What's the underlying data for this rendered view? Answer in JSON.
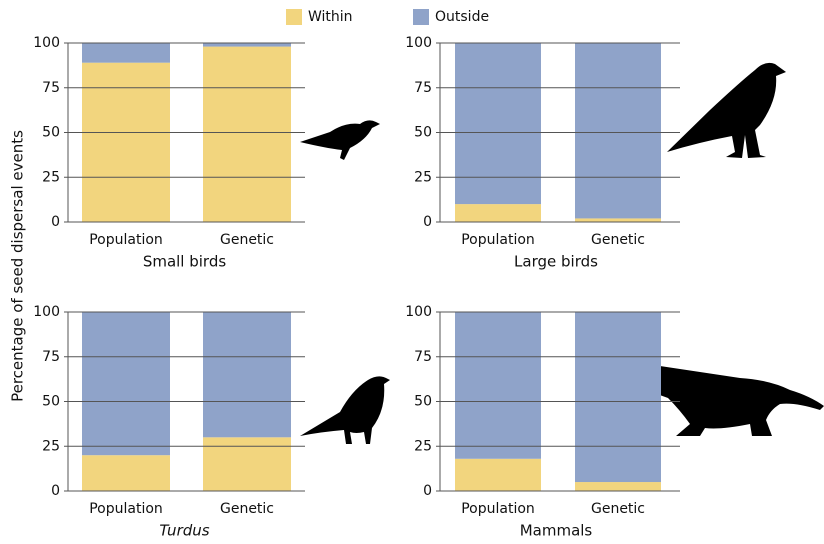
{
  "ylabel": "Percentage of seed dispersal events",
  "chart_data": [
    {
      "type": "bar",
      "stacked": true,
      "title": "Small birds",
      "italic": false,
      "categories": [
        "Population",
        "Genetic"
      ],
      "series": [
        {
          "name": "Within",
          "color": "#f2d57e",
          "values": [
            89,
            98
          ]
        },
        {
          "name": "Outside",
          "color": "#8fa3c9",
          "values": [
            11,
            2
          ]
        }
      ],
      "ylim": [
        0,
        100
      ],
      "yticks": [
        0,
        25,
        50,
        75,
        100
      ],
      "grid": true
    },
    {
      "type": "bar",
      "stacked": true,
      "title": "Large birds",
      "italic": false,
      "categories": [
        "Population",
        "Genetic"
      ],
      "series": [
        {
          "name": "Within",
          "color": "#f2d57e",
          "values": [
            10,
            2
          ]
        },
        {
          "name": "Outside",
          "color": "#8fa3c9",
          "values": [
            90,
            98
          ]
        }
      ],
      "ylim": [
        0,
        100
      ],
      "yticks": [
        0,
        25,
        50,
        75,
        100
      ],
      "grid": true
    },
    {
      "type": "bar",
      "stacked": true,
      "title": "Turdus",
      "italic": true,
      "categories": [
        "Population",
        "Genetic"
      ],
      "series": [
        {
          "name": "Within",
          "color": "#f2d57e",
          "values": [
            20,
            30
          ]
        },
        {
          "name": "Outside",
          "color": "#8fa3c9",
          "values": [
            80,
            70
          ]
        }
      ],
      "ylim": [
        0,
        100
      ],
      "yticks": [
        0,
        25,
        50,
        75,
        100
      ],
      "grid": true
    },
    {
      "type": "bar",
      "stacked": true,
      "title": "Mammals",
      "italic": false,
      "categories": [
        "Population",
        "Genetic"
      ],
      "series": [
        {
          "name": "Within",
          "color": "#f2d57e",
          "values": [
            18,
            5
          ]
        },
        {
          "name": "Outside",
          "color": "#8fa3c9",
          "values": [
            82,
            95
          ]
        }
      ],
      "ylim": [
        0,
        100
      ],
      "yticks": [
        0,
        25,
        50,
        75,
        100
      ],
      "grid": true
    }
  ]
}
